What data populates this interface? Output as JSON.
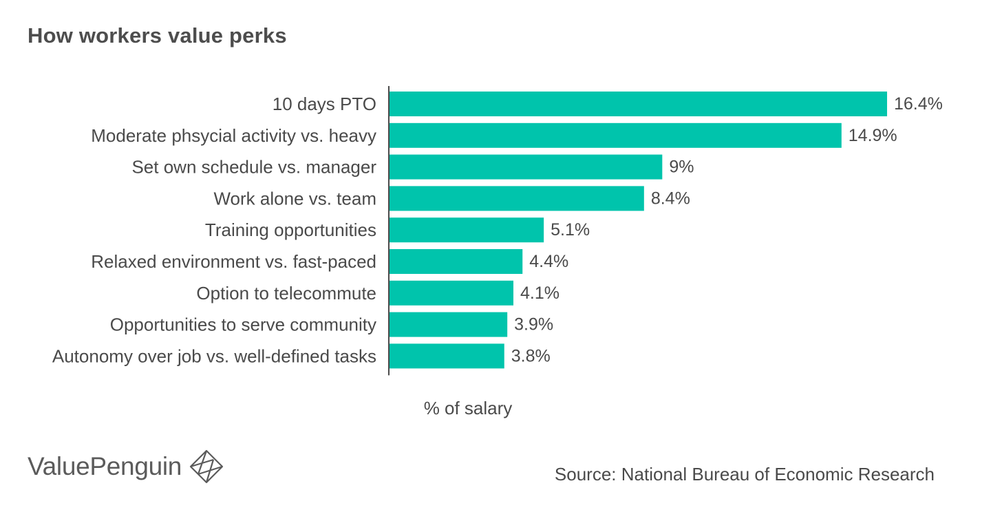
{
  "colors": {
    "bar": "#00c4ac",
    "axis": "#4a4a4a",
    "text": "#4a4a4a"
  },
  "chart_data": {
    "type": "bar",
    "orientation": "horizontal",
    "title": "How workers value perks",
    "xlabel": "% of salary",
    "ylabel": "",
    "xlim": [
      0,
      16.4
    ],
    "grid": false,
    "categories": [
      "10 days PTO",
      "Moderate phsycial activity vs. heavy",
      "Set own schedule vs. manager",
      "Work alone vs. team",
      "Training opportunities",
      "Relaxed environment vs. fast-paced",
      "Option to telecommute",
      "Opportunities to serve community",
      "Autonomy over job vs. well-defined tasks"
    ],
    "values": [
      16.4,
      14.9,
      9,
      8.4,
      5.1,
      4.4,
      4.1,
      3.9,
      3.8
    ],
    "value_labels": [
      "16.4%",
      "14.9%",
      "9%",
      "8.4%",
      "5.1%",
      "4.4%",
      "4.1%",
      "3.9%",
      "3.8%"
    ]
  },
  "footer": {
    "brand": "ValuePenguin",
    "brand_icon": "valuepenguin-logo-icon",
    "source": "Source: National Bureau of Economic Research"
  }
}
